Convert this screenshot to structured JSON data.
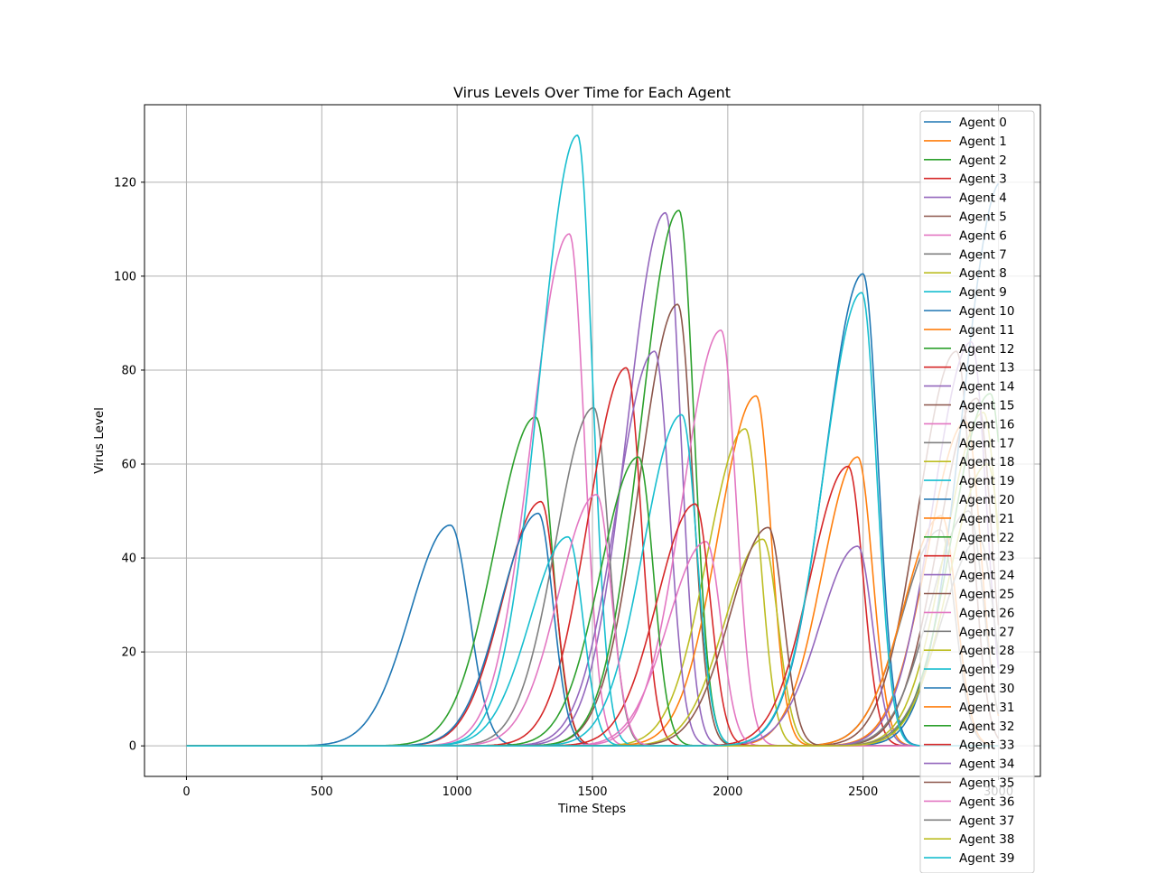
{
  "chart_data": {
    "type": "line",
    "title": "Virus Levels Over Time for Each Agent",
    "xlabel": "Time Steps",
    "ylabel": "Virus Level",
    "xlim": [
      -155,
      3155
    ],
    "ylim": [
      -6.5,
      136.5
    ],
    "xticks": [
      0,
      500,
      1000,
      1500,
      2000,
      2500,
      3000
    ],
    "yticks": [
      0,
      20,
      40,
      60,
      80,
      100,
      120
    ],
    "grid": true,
    "legend": "upper right",
    "palette": [
      "#1f77b4",
      "#ff7f0e",
      "#2ca02c",
      "#d62728",
      "#9467bd",
      "#8c564b",
      "#e377c2",
      "#7f7f7f",
      "#bcbd22",
      "#17becf"
    ],
    "series": [
      {
        "name": "Agent 0",
        "peak_x": 975,
        "peak_y": 47,
        "rise": 148,
        "fall": 70
      },
      {
        "name": "Agent 1",
        "peak_x": 2480,
        "peak_y": 61.5,
        "rise": 130,
        "fall": 55
      },
      {
        "name": "Agent 2",
        "peak_x": 1290,
        "peak_y": 70,
        "rise": 150,
        "fall": 60
      },
      {
        "name": "Agent 3",
        "peak_x": 1310,
        "peak_y": 52,
        "rise": 140,
        "fall": 55
      },
      {
        "name": "Agent 4",
        "peak_x": 1770,
        "peak_y": 113.5,
        "rise": 140,
        "fall": 55
      },
      {
        "name": "Agent 5",
        "peak_x": 1815,
        "peak_y": 94,
        "rise": 140,
        "fall": 55
      },
      {
        "name": "Agent 6",
        "peak_x": 1415,
        "peak_y": 109,
        "rise": 140,
        "fall": 55
      },
      {
        "name": "Agent 7",
        "peak_x": 1505,
        "peak_y": 72,
        "rise": 140,
        "fall": 55
      },
      {
        "name": "Agent 8",
        "peak_x": 2065,
        "peak_y": 67.5,
        "rise": 140,
        "fall": 55
      },
      {
        "name": "Agent 9",
        "peak_x": 1445,
        "peak_y": 130,
        "rise": 140,
        "fall": 55
      },
      {
        "name": "Agent 10",
        "peak_x": 2500,
        "peak_y": 100.5,
        "rise": 140,
        "fall": 55
      },
      {
        "name": "Agent 11",
        "peak_x": 2105,
        "peak_y": 74.5,
        "rise": 140,
        "fall": 55
      },
      {
        "name": "Agent 12",
        "peak_x": 1820,
        "peak_y": 114,
        "rise": 140,
        "fall": 55
      },
      {
        "name": "Agent 13",
        "peak_x": 1625,
        "peak_y": 80.5,
        "rise": 140,
        "fall": 55
      },
      {
        "name": "Agent 14",
        "peak_x": 1730,
        "peak_y": 84,
        "rise": 140,
        "fall": 55
      },
      {
        "name": "Agent 15",
        "peak_x": 2845,
        "peak_y": 84,
        "rise": 140,
        "fall": 55
      },
      {
        "name": "Agent 16",
        "peak_x": 1975,
        "peak_y": 88.5,
        "rise": 140,
        "fall": 55
      },
      {
        "name": "Agent 17",
        "peak_x": 2785,
        "peak_y": 46,
        "rise": 140,
        "fall": 55
      },
      {
        "name": "Agent 18",
        "peak_x": 2130,
        "peak_y": 44,
        "rise": 140,
        "fall": 55
      },
      {
        "name": "Agent 19",
        "peak_x": 1830,
        "peak_y": 70.5,
        "rise": 140,
        "fall": 55
      },
      {
        "name": "Agent 20",
        "peak_x": 1300,
        "peak_y": 49.5,
        "rise": 140,
        "fall": 55
      },
      {
        "name": "Agent 21",
        "peak_x": 2880,
        "peak_y": 69,
        "rise": 140,
        "fall": 55
      },
      {
        "name": "Agent 22",
        "peak_x": 1670,
        "peak_y": 61.5,
        "rise": 140,
        "fall": 55
      },
      {
        "name": "Agent 23",
        "peak_x": 2445,
        "peak_y": 59.5,
        "rise": 140,
        "fall": 55
      },
      {
        "name": "Agent 24",
        "peak_x": 2480,
        "peak_y": 42.5,
        "rise": 140,
        "fall": 55
      },
      {
        "name": "Agent 25",
        "peak_x": 2920,
        "peak_y": 74,
        "rise": 140,
        "fall": 55
      },
      {
        "name": "Agent 26",
        "peak_x": 1920,
        "peak_y": 43.5,
        "rise": 140,
        "fall": 55
      },
      {
        "name": "Agent 27",
        "peak_x": 2890,
        "peak_y": 50,
        "rise": 140,
        "fall": 55
      },
      {
        "name": "Agent 28",
        "peak_x": 2945,
        "peak_y": 71,
        "rise": 140,
        "fall": 55
      },
      {
        "name": "Agent 29",
        "peak_x": 1410,
        "peak_y": 44.5,
        "rise": 140,
        "fall": 55
      },
      {
        "name": "Agent 30",
        "peak_x": 3010,
        "peak_y": 120,
        "rise": 140,
        "fall": 55
      },
      {
        "name": "Agent 31",
        "peak_x": 2790,
        "peak_y": 49,
        "rise": 140,
        "fall": 55
      },
      {
        "name": "Agent 32",
        "peak_x": 2970,
        "peak_y": 75,
        "rise": 140,
        "fall": 55
      },
      {
        "name": "Agent 33",
        "peak_x": 1880,
        "peak_y": 51.5,
        "rise": 140,
        "fall": 55
      },
      {
        "name": "Agent 34",
        "peak_x": 2900,
        "peak_y": 86,
        "rise": 140,
        "fall": 55
      },
      {
        "name": "Agent 35",
        "peak_x": 2150,
        "peak_y": 46.5,
        "rise": 140,
        "fall": 55
      },
      {
        "name": "Agent 36",
        "peak_x": 1515,
        "peak_y": 53.5,
        "rise": 140,
        "fall": 55
      },
      {
        "name": "Agent 37",
        "peak_x": 2930,
        "peak_y": 44,
        "rise": 140,
        "fall": 55
      },
      {
        "name": "Agent 38",
        "peak_x": 2960,
        "peak_y": 60,
        "rise": 140,
        "fall": 55
      },
      {
        "name": "Agent 39",
        "peak_x": 2495,
        "peak_y": 96.5,
        "rise": 140,
        "fall": 55
      }
    ]
  }
}
